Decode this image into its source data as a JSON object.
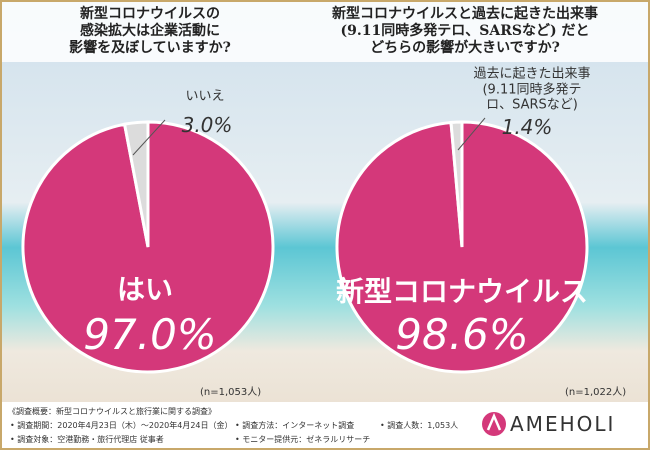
{
  "chart_data": [
    {
      "type": "pie",
      "title": "新型コロナウイルスの\n感染拡大は企業活動に\n影響を及ぼしていますか?",
      "categories": [
        "はい",
        "いいえ"
      ],
      "values": [
        97.0,
        3.0
      ],
      "value_labels": [
        "97.0%",
        "3.0%"
      ],
      "colors": [
        "#d4387a",
        "#dcdcdc"
      ],
      "note": "(n=1,053人)"
    },
    {
      "type": "pie",
      "title": "新型コロナウイルスと過去に起きた出来事\n(9.11同時多発テロ、SARSなど) だと\nどちらの影響が大きいですか?",
      "categories": [
        "新型コロナウイルス",
        "過去に起きた出来事\n(9.11同時多発テロ、SARSなど)"
      ],
      "values": [
        98.6,
        1.4
      ],
      "value_labels": [
        "98.6%",
        "1.4%"
      ],
      "colors": [
        "#d4387a",
        "#dcdcdc"
      ],
      "note": "(n=1,022人)"
    }
  ],
  "footer": {
    "title": "《調査概要：新型コロナウイルスと旅行業に関する調査》",
    "items": [
      "• 調査期間：2020年4月23日（木）〜2020年4月24日（金）",
      "• 調査方法：インターネット調査",
      "• 調査人数：1,053人",
      "• 調査対象：空港勤務・旅行代理店 従事者",
      "• モニター提供元：ゼネラルリサーチ"
    ]
  },
  "logo": "AMEHOLI"
}
